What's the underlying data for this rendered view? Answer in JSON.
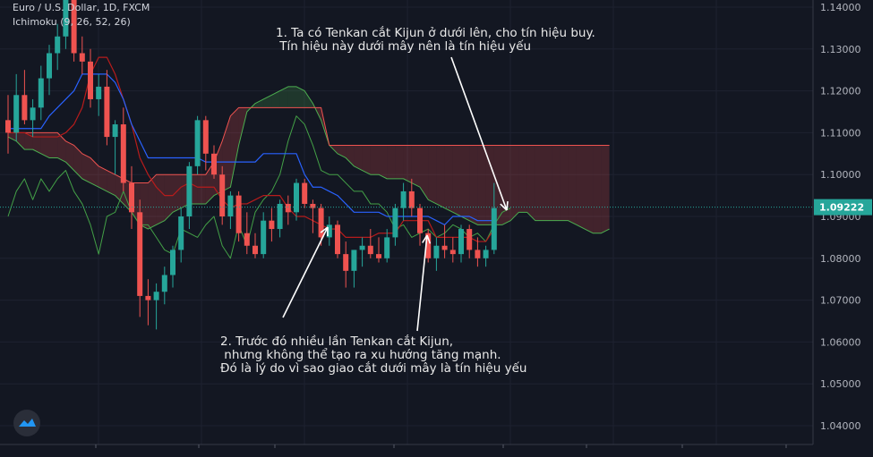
{
  "header": {
    "symbol_line": "Euro / U.S. Dollar, 1D, FXCM",
    "indicator_line": "Ichimoku (9, 26, 52, 26)"
  },
  "annotations": {
    "note1": "1. Ta có Tenkan cắt Kijun ở dưới lên, cho tín hiệu buy.\n Tín hiệu này dưới mây nên là tín hiệu yếu",
    "note2": "2. Trước đó nhiều lần Tenkan cắt Kijun,\n nhưng không thể tạo ra xu hướng tăng mạnh.\nĐó là lý do vì sao giao cắt dưới mây là tín hiệu yếu"
  },
  "colors": {
    "background": "#131722",
    "up": "#26a69a",
    "down": "#ef5350",
    "tenkan": "#2962ff",
    "kijun": "#b71c1c",
    "lagging": "#43a047",
    "span_a": "#4caf50",
    "span_b": "#ef5350",
    "price_label": "#26a69a",
    "annotation": "#ffffff"
  },
  "chart_data": {
    "type": "candlestick",
    "symbol": "Euro / U.S. Dollar",
    "timeframe": "1D",
    "source": "FXCM",
    "indicator": "Ichimoku (9, 26, 52, 26)",
    "last_price": "1.09222",
    "y_ticks": [
      "1.14000",
      "1.13000",
      "1.12000",
      "1.11000",
      "1.10000",
      "1.09000",
      "1.08000",
      "1.07000",
      "1.06000",
      "1.05000",
      "1.04000"
    ],
    "ylim": [
      1.0355,
      1.1425
    ],
    "candles": [
      [
        1.113,
        1.119,
        1.105,
        1.11
      ],
      [
        1.11,
        1.124,
        1.108,
        1.119
      ],
      [
        1.119,
        1.125,
        1.112,
        1.113
      ],
      [
        1.113,
        1.118,
        1.109,
        1.116
      ],
      [
        1.116,
        1.126,
        1.113,
        1.123
      ],
      [
        1.123,
        1.131,
        1.119,
        1.129
      ],
      [
        1.129,
        1.136,
        1.125,
        1.133
      ],
      [
        1.133,
        1.143,
        1.13,
        1.142
      ],
      [
        1.142,
        1.144,
        1.127,
        1.129
      ],
      [
        1.129,
        1.133,
        1.124,
        1.127
      ],
      [
        1.127,
        1.13,
        1.116,
        1.118
      ],
      [
        1.118,
        1.124,
        1.114,
        1.121
      ],
      [
        1.121,
        1.125,
        1.107,
        1.109
      ],
      [
        1.109,
        1.113,
        1.1,
        1.112
      ],
      [
        1.112,
        1.116,
        1.096,
        1.098
      ],
      [
        1.098,
        1.102,
        1.087,
        1.091
      ],
      [
        1.091,
        1.094,
        1.066,
        1.071
      ],
      [
        1.071,
        1.075,
        1.064,
        1.07
      ],
      [
        1.07,
        1.074,
        1.063,
        1.072
      ],
      [
        1.072,
        1.078,
        1.069,
        1.076
      ],
      [
        1.076,
        1.083,
        1.073,
        1.082
      ],
      [
        1.082,
        1.092,
        1.079,
        1.09
      ],
      [
        1.09,
        1.103,
        1.087,
        1.102
      ],
      [
        1.102,
        1.114,
        1.1,
        1.113
      ],
      [
        1.113,
        1.114,
        1.101,
        1.105
      ],
      [
        1.105,
        1.107,
        1.099,
        1.1
      ],
      [
        1.1,
        1.102,
        1.088,
        1.09
      ],
      [
        1.09,
        1.096,
        1.087,
        1.095
      ],
      [
        1.095,
        1.096,
        1.084,
        1.086
      ],
      [
        1.086,
        1.091,
        1.081,
        1.083
      ],
      [
        1.083,
        1.086,
        1.08,
        1.081
      ],
      [
        1.081,
        1.091,
        1.08,
        1.089
      ],
      [
        1.089,
        1.092,
        1.084,
        1.087
      ],
      [
        1.087,
        1.094,
        1.085,
        1.093
      ],
      [
        1.093,
        1.095,
        1.088,
        1.091
      ],
      [
        1.091,
        1.099,
        1.089,
        1.098
      ],
      [
        1.098,
        1.099,
        1.092,
        1.093
      ],
      [
        1.093,
        1.094,
        1.086,
        1.092
      ],
      [
        1.092,
        1.093,
        1.083,
        1.085
      ],
      [
        1.085,
        1.09,
        1.083,
        1.088
      ],
      [
        1.088,
        1.089,
        1.08,
        1.081
      ],
      [
        1.081,
        1.084,
        1.073,
        1.077
      ],
      [
        1.077,
        1.082,
        1.073,
        1.082
      ],
      [
        1.082,
        1.085,
        1.078,
        1.083
      ],
      [
        1.083,
        1.087,
        1.08,
        1.081
      ],
      [
        1.081,
        1.085,
        1.079,
        1.08
      ],
      [
        1.08,
        1.087,
        1.079,
        1.085
      ],
      [
        1.085,
        1.093,
        1.083,
        1.092
      ],
      [
        1.092,
        1.098,
        1.089,
        1.096
      ],
      [
        1.096,
        1.099,
        1.09,
        1.092
      ],
      [
        1.092,
        1.093,
        1.083,
        1.086
      ],
      [
        1.086,
        1.087,
        1.079,
        1.08
      ],
      [
        1.08,
        1.085,
        1.077,
        1.083
      ],
      [
        1.083,
        1.088,
        1.08,
        1.082
      ],
      [
        1.082,
        1.085,
        1.079,
        1.081
      ],
      [
        1.081,
        1.088,
        1.079,
        1.087
      ],
      [
        1.087,
        1.088,
        1.08,
        1.082
      ],
      [
        1.082,
        1.085,
        1.078,
        1.08
      ],
      [
        1.08,
        1.083,
        1.078,
        1.082
      ],
      [
        1.082,
        1.098,
        1.081,
        1.092
      ]
    ],
    "tenkan": [
      1.111,
      1.111,
      1.111,
      1.111,
      1.111,
      1.114,
      1.116,
      1.118,
      1.12,
      1.124,
      1.124,
      1.124,
      1.124,
      1.122,
      1.118,
      1.112,
      1.108,
      1.104,
      1.104,
      1.104,
      1.104,
      1.104,
      1.104,
      1.104,
      1.103,
      1.103,
      1.103,
      1.103,
      1.103,
      1.103,
      1.103,
      1.105,
      1.105,
      1.105,
      1.105,
      1.105,
      1.1,
      1.097,
      1.097,
      1.096,
      1.095,
      1.093,
      1.091,
      1.091,
      1.091,
      1.091,
      1.09,
      1.09,
      1.09,
      1.09,
      1.09,
      1.09,
      1.089,
      1.088,
      1.09,
      1.09,
      1.09,
      1.089,
      1.089,
      1.089
    ],
    "kijun": [
      1.11,
      1.11,
      1.11,
      1.109,
      1.109,
      1.109,
      1.109,
      1.11,
      1.112,
      1.116,
      1.124,
      1.128,
      1.128,
      1.124,
      1.118,
      1.112,
      1.104,
      1.1,
      1.097,
      1.095,
      1.095,
      1.097,
      1.098,
      1.097,
      1.097,
      1.097,
      1.094,
      1.092,
      1.093,
      1.093,
      1.094,
      1.095,
      1.095,
      1.095,
      1.092,
      1.09,
      1.09,
      1.089,
      1.088,
      1.087,
      1.087,
      1.085,
      1.085,
      1.085,
      1.085,
      1.086,
      1.086,
      1.086,
      1.089,
      1.089,
      1.089,
      1.089,
      1.085,
      1.085,
      1.085,
      1.085,
      1.085,
      1.084,
      1.084,
      1.087
    ],
    "span_a": [
      1.109,
      1.108,
      1.106,
      1.106,
      1.105,
      1.104,
      1.104,
      1.103,
      1.101,
      1.099,
      1.098,
      1.097,
      1.096,
      1.095,
      1.093,
      1.091,
      1.088,
      1.087,
      1.088,
      1.089,
      1.091,
      1.092,
      1.093,
      1.093,
      1.093,
      1.095,
      1.096,
      1.097,
      1.107,
      1.115,
      1.117,
      1.118,
      1.119,
      1.12,
      1.121,
      1.121,
      1.12,
      1.117,
      1.113,
      1.107,
      1.105,
      1.104,
      1.102,
      1.101,
      1.1,
      1.1,
      1.099,
      1.099,
      1.099,
      1.098,
      1.097,
      1.094,
      1.093,
      1.092,
      1.091,
      1.09,
      1.089,
      1.088,
      1.088,
      1.088,
      1.088,
      1.089,
      1.091,
      1.091,
      1.089,
      1.089,
      1.089,
      1.089,
      1.089,
      1.088,
      1.087,
      1.086,
      1.086,
      1.087
    ],
    "span_b": [
      1.11,
      1.11,
      1.11,
      1.11,
      1.11,
      1.11,
      1.11,
      1.108,
      1.107,
      1.105,
      1.104,
      1.102,
      1.101,
      1.1,
      1.099,
      1.098,
      1.098,
      1.098,
      1.1,
      1.1,
      1.1,
      1.1,
      1.1,
      1.1,
      1.1,
      1.103,
      1.108,
      1.114,
      1.116,
      1.116,
      1.116,
      1.116,
      1.116,
      1.116,
      1.116,
      1.116,
      1.116,
      1.116,
      1.116,
      1.107,
      1.107,
      1.107,
      1.107,
      1.107,
      1.107,
      1.107,
      1.107,
      1.107,
      1.107,
      1.107,
      1.107,
      1.107,
      1.107,
      1.107,
      1.107,
      1.107,
      1.107,
      1.107,
      1.107,
      1.107,
      1.107,
      1.107,
      1.107,
      1.107,
      1.107,
      1.107,
      1.107,
      1.107,
      1.107,
      1.107,
      1.107,
      1.107,
      1.107,
      1.107
    ],
    "lagging": [
      1.09,
      1.096,
      1.099,
      1.094,
      1.099,
      1.096,
      1.099,
      1.101,
      1.096,
      1.093,
      1.088,
      1.081,
      1.09,
      1.091,
      1.096,
      1.091,
      1.088,
      1.088,
      1.085,
      1.082,
      1.081,
      1.087,
      1.086,
      1.085,
      1.088,
      1.09,
      1.083,
      1.08,
      1.088,
      1.083,
      1.091,
      1.094,
      1.096,
      1.1,
      1.108,
      1.114,
      1.112,
      1.107,
      1.101,
      1.1,
      1.1,
      1.098,
      1.096,
      1.096,
      1.093,
      1.093,
      1.091,
      1.087,
      1.088,
      1.085,
      1.086,
      1.087,
      1.085,
      1.086,
      1.088,
      1.087,
      1.085,
      1.086,
      1.084,
      1.088,
      1.091,
      1.092
    ]
  },
  "axis": {
    "price_labels": [
      "1.14000",
      "1.13000",
      "1.12000",
      "1.11000",
      "1.10000",
      "1.09000",
      "1.08000",
      "1.07000",
      "1.06000",
      "1.05000",
      "1.04000"
    ],
    "current_price": "1.09222"
  }
}
